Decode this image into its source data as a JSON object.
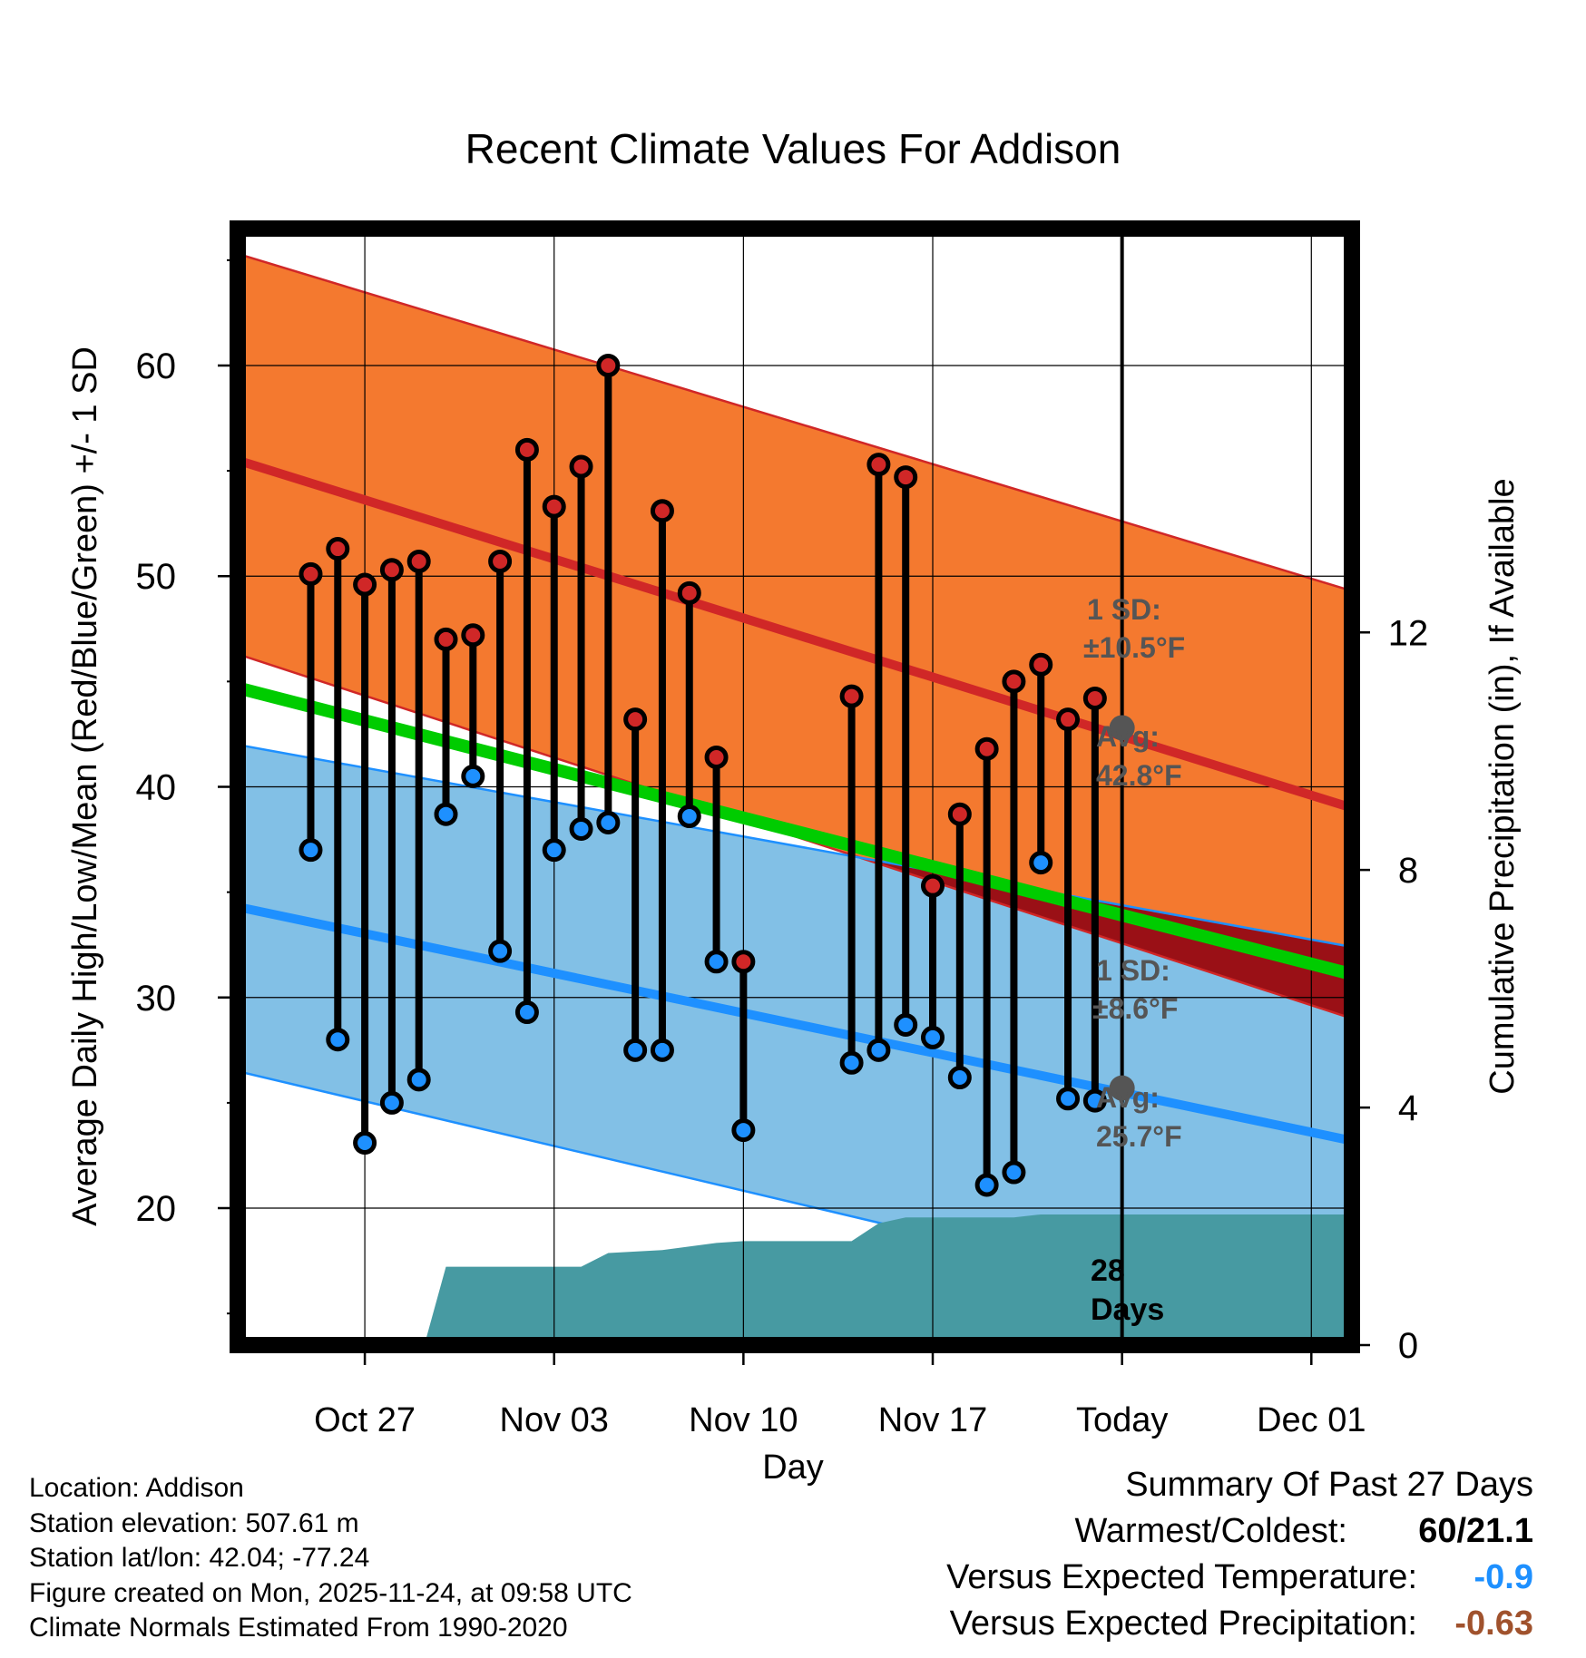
{
  "chart_data": {
    "type": "line",
    "title": "Recent Climate Values For Addison",
    "xlabel": "Day",
    "ylabel": "Average Daily High/Low/Mean (Red/Blue/Green) +/- 1 SD",
    "y2label": "Cumulative Precipitation (in), If Available",
    "ylim": [
      13.5,
      66.5
    ],
    "y2lim": [
      0,
      18.8
    ],
    "yticks": [
      20,
      30,
      40,
      50,
      60
    ],
    "y2ticks": [
      0,
      4,
      8,
      12
    ],
    "xlim": [
      -4.7,
      36.5
    ],
    "xtick_positions": [
      0,
      7,
      14,
      21,
      28,
      35
    ],
    "xtick_labels": [
      "Oct 27",
      "Nov 03",
      "Nov 10",
      "Nov 17",
      "Today",
      "Dec 01"
    ],
    "today_index": 28,
    "normals": {
      "x": [
        -4.7,
        36.5
      ],
      "high_mean": [
        55.5,
        39.0
      ],
      "high_upper": [
        65.3,
        49.3
      ],
      "high_lower": [
        46.3,
        29.0
      ],
      "low_mean": [
        34.3,
        23.2
      ],
      "low_upper": [
        42.0,
        32.4
      ],
      "low_lower": [
        26.5,
        14.0
      ],
      "mean": [
        44.7,
        31.1
      ]
    },
    "observations": {
      "day_offset": [
        -2,
        -1,
        0,
        1,
        2,
        3,
        4,
        5,
        6,
        7,
        8,
        9,
        10,
        11,
        12,
        13,
        14,
        18,
        19,
        20,
        21,
        22,
        23,
        24,
        25,
        26,
        27
      ],
      "high": [
        50.1,
        51.3,
        49.6,
        50.3,
        50.7,
        47.0,
        47.2,
        50.7,
        56.0,
        53.3,
        55.2,
        60.0,
        43.2,
        53.1,
        49.2,
        41.4,
        31.7,
        44.3,
        55.3,
        54.7,
        35.3,
        38.7,
        41.8,
        45.0,
        45.8,
        43.2,
        44.2
      ],
      "low": [
        37.0,
        28.0,
        23.1,
        25.0,
        26.1,
        38.7,
        40.5,
        32.2,
        29.3,
        37.0,
        38.0,
        38.3,
        27.5,
        27.5,
        38.6,
        31.7,
        23.7,
        26.9,
        27.5,
        28.7,
        28.1,
        26.2,
        21.1,
        21.7,
        36.4,
        25.2,
        25.1
      ]
    },
    "precipitation": {
      "x": [
        -4.7,
        2.2,
        3.0,
        6.0,
        7.0,
        8.0,
        9.0,
        11.0,
        13.0,
        14.0,
        17.0,
        18.0,
        19.0,
        20.0,
        21.0,
        23.0,
        24.0,
        25.0,
        26.0,
        27.0,
        28.0,
        36.5
      ],
      "cumulative": [
        0.0,
        0.0,
        1.32,
        1.32,
        1.32,
        1.32,
        1.55,
        1.6,
        1.72,
        1.75,
        1.75,
        1.75,
        2.05,
        2.15,
        2.15,
        2.15,
        2.15,
        2.2,
        2.2,
        2.2,
        2.2,
        2.2
      ]
    },
    "annotations": {
      "high_sd_label": "1 SD:",
      "high_sd_value": "±10.5°F",
      "high_avg_label": "Avg:",
      "high_avg_value": "42.8°F",
      "high_avg_temp": 42.8,
      "low_sd_label": "1 SD:",
      "low_sd_value": "±8.6°F",
      "low_avg_label": "Avg:",
      "low_avg_value": "25.7°F",
      "low_avg_temp": 25.7,
      "days_number": "28",
      "days_word": "Days"
    },
    "colors": {
      "high_band": "#f4792f",
      "high_line": "#d02727",
      "low_band": "#82c0e6",
      "low_line": "#1e90ff",
      "mean_line": "#00cc00",
      "overlap": "#9a1016",
      "precip": "#479aa2",
      "high_dot": "#d02727",
      "low_dot": "#1e90ff",
      "annotation": "#555555"
    }
  },
  "footer": {
    "location": "Location: Addison",
    "elevation": "Station elevation: 507.61 m",
    "latlon": "Station lat/lon: 42.04; -77.24",
    "created": "Figure created on Mon, 2025-11-24, at 09:58 UTC",
    "normals": "Climate Normals Estimated From 1990-2020"
  },
  "summary": {
    "title": "Summary Of Past 27 Days",
    "warmest_label": "Warmest/Coldest:",
    "warmest_value": "60/21.1",
    "temp_label": "Versus Expected Temperature:",
    "temp_value": "-0.9",
    "temp_color": "#1e90ff",
    "precip_label": "Versus Expected Precipitation:",
    "precip_value": "-0.63",
    "precip_color": "#a0522d"
  }
}
